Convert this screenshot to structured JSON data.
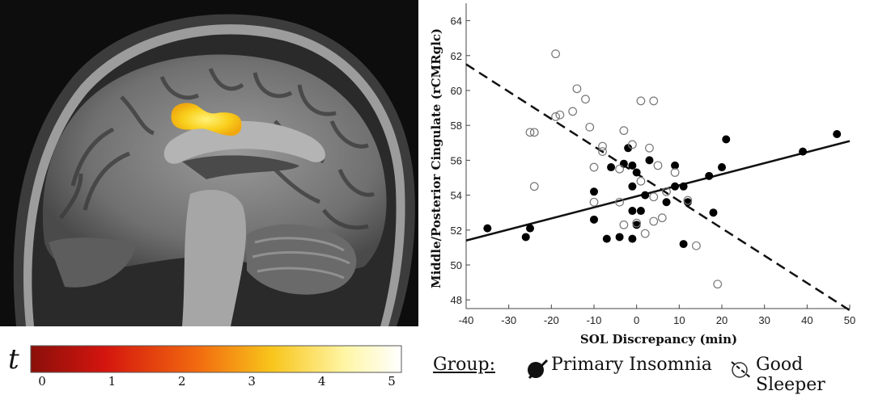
{
  "brain_panel": {
    "label": "sagittal brain slice with highlighted cluster"
  },
  "colorbar": {
    "symbol": "t",
    "ticks": [
      "0",
      "1",
      "2",
      "3",
      "4",
      "5"
    ],
    "range": [
      0,
      5
    ],
    "colors": [
      "#8b0f0a",
      "#d4150e",
      "#f26a0f",
      "#f8c51b",
      "#fff6a6",
      "#ffffff"
    ]
  },
  "legend": {
    "group_label": "Group:",
    "items": [
      {
        "label": "Primary Insomnia",
        "marker": "filled-circle"
      },
      {
        "label": "Good Sleeper",
        "marker": "open-circle"
      }
    ]
  },
  "chart_data": {
    "type": "scatter",
    "xlabel": "SOL Discrepancy (min)",
    "ylabel": "Middle/Posterior Cingulate (rCMRglc)",
    "xlim": [
      -40,
      50
    ],
    "ylim": [
      47.5,
      65
    ],
    "xticks": [
      -40,
      -30,
      -20,
      -10,
      0,
      10,
      20,
      30,
      40,
      50
    ],
    "yticks": [
      48,
      50,
      52,
      54,
      56,
      58,
      60,
      62,
      64
    ],
    "grid": false,
    "series": [
      {
        "name": "Primary Insomnia",
        "marker": "filled",
        "fit_line": {
          "style": "solid",
          "x": [
            -40,
            50
          ],
          "y": [
            51.4,
            57.1
          ]
        },
        "points": [
          [
            -35,
            52.1
          ],
          [
            -26,
            51.6
          ],
          [
            -25,
            52.1
          ],
          [
            -10,
            54.2
          ],
          [
            -10,
            52.6
          ],
          [
            -7,
            51.5
          ],
          [
            -6,
            55.6
          ],
          [
            -4,
            51.6
          ],
          [
            -3,
            55.8
          ],
          [
            -2,
            56.7
          ],
          [
            -1,
            55.7
          ],
          [
            -1,
            54.5
          ],
          [
            -1,
            53.1
          ],
          [
            -1,
            51.5
          ],
          [
            0,
            52.3
          ],
          [
            0,
            55.3
          ],
          [
            1,
            53.1
          ],
          [
            2,
            54
          ],
          [
            3,
            56
          ],
          [
            7,
            53.6
          ],
          [
            9,
            55.7
          ],
          [
            9,
            54.5
          ],
          [
            11,
            51.2
          ],
          [
            11,
            54.5
          ],
          [
            12,
            53.6
          ],
          [
            17,
            55.1
          ],
          [
            18,
            53
          ],
          [
            20,
            55.6
          ],
          [
            21,
            57.2
          ],
          [
            39,
            56.5
          ],
          [
            47,
            57.5
          ]
        ]
      },
      {
        "name": "Good Sleeper",
        "marker": "open",
        "fit_line": {
          "style": "dashed",
          "x": [
            -40,
            50
          ],
          "y": [
            61.5,
            47.4
          ]
        },
        "points": [
          [
            -19,
            62.1
          ],
          [
            -24,
            57.6
          ],
          [
            -25,
            57.6
          ],
          [
            -24,
            54.5
          ],
          [
            -19,
            58.5
          ],
          [
            -18,
            58.6
          ],
          [
            -15,
            58.8
          ],
          [
            -14,
            60.1
          ],
          [
            -12,
            59.5
          ],
          [
            -11,
            57.9
          ],
          [
            -10,
            55.6
          ],
          [
            -10,
            53.6
          ],
          [
            -8,
            56.8
          ],
          [
            -8,
            56.5
          ],
          [
            -4,
            55.5
          ],
          [
            -4,
            53.6
          ],
          [
            -3,
            57.7
          ],
          [
            -3,
            52.3
          ],
          [
            -1,
            56.9
          ],
          [
            0,
            52.4
          ],
          [
            1,
            59.4
          ],
          [
            1,
            54.8
          ],
          [
            2,
            51.8
          ],
          [
            3,
            56.7
          ],
          [
            4,
            59.4
          ],
          [
            4,
            53.9
          ],
          [
            4,
            52.5
          ],
          [
            5,
            55.7
          ],
          [
            6,
            52.7
          ],
          [
            7,
            54.2
          ],
          [
            9,
            55.3
          ],
          [
            12,
            53.7
          ],
          [
            14,
            51.1
          ],
          [
            19,
            48.9
          ]
        ]
      }
    ]
  }
}
